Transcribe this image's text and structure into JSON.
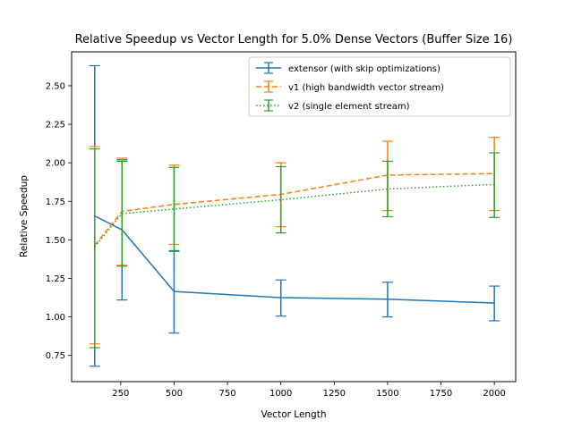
{
  "chart_data": {
    "type": "line",
    "title": "Relative Speedup vs Vector Length for 5.0% Dense Vectors (Buffer Size 16)",
    "xlabel": "Vector Length",
    "ylabel": "Relative Speedup",
    "xlim": [
      20,
      2100
    ],
    "ylim": [
      0.58,
      2.72
    ],
    "xticks": [
      250,
      500,
      750,
      1000,
      1250,
      1500,
      1750,
      2000
    ],
    "yticks": [
      0.75,
      1.0,
      1.25,
      1.5,
      1.75,
      2.0,
      2.25,
      2.5
    ],
    "grid": false,
    "legend_position": "top-right",
    "x": [
      128,
      256,
      500,
      1000,
      1500,
      2000
    ],
    "series": [
      {
        "name": "extensor (with skip optimizations)",
        "color": "#1f77b4",
        "linestyle": "solid",
        "values": [
          1.655,
          1.565,
          1.165,
          1.125,
          1.115,
          1.09
        ],
        "err_low": [
          0.68,
          1.11,
          0.895,
          1.005,
          1.0,
          0.975
        ],
        "err_high": [
          2.63,
          2.02,
          1.43,
          1.24,
          1.225,
          1.2
        ]
      },
      {
        "name": "v1 (high bandwidth vector stream)",
        "color": "#ff7f0e",
        "linestyle": "dashed",
        "values": [
          1.465,
          1.685,
          1.73,
          1.795,
          1.92,
          1.93
        ],
        "err_low": [
          0.825,
          1.335,
          1.47,
          1.585,
          1.69,
          1.69
        ],
        "err_high": [
          2.105,
          2.03,
          1.985,
          2.0,
          2.14,
          2.165
        ]
      },
      {
        "name": "v2 (single element stream)",
        "color": "#2ca02c",
        "linestyle": "dotted",
        "values": [
          1.455,
          1.67,
          1.7,
          1.76,
          1.83,
          1.86
        ],
        "err_low": [
          0.8,
          1.33,
          1.425,
          1.545,
          1.65,
          1.645
        ],
        "err_high": [
          2.09,
          2.01,
          1.97,
          1.975,
          2.01,
          2.065
        ]
      }
    ]
  }
}
